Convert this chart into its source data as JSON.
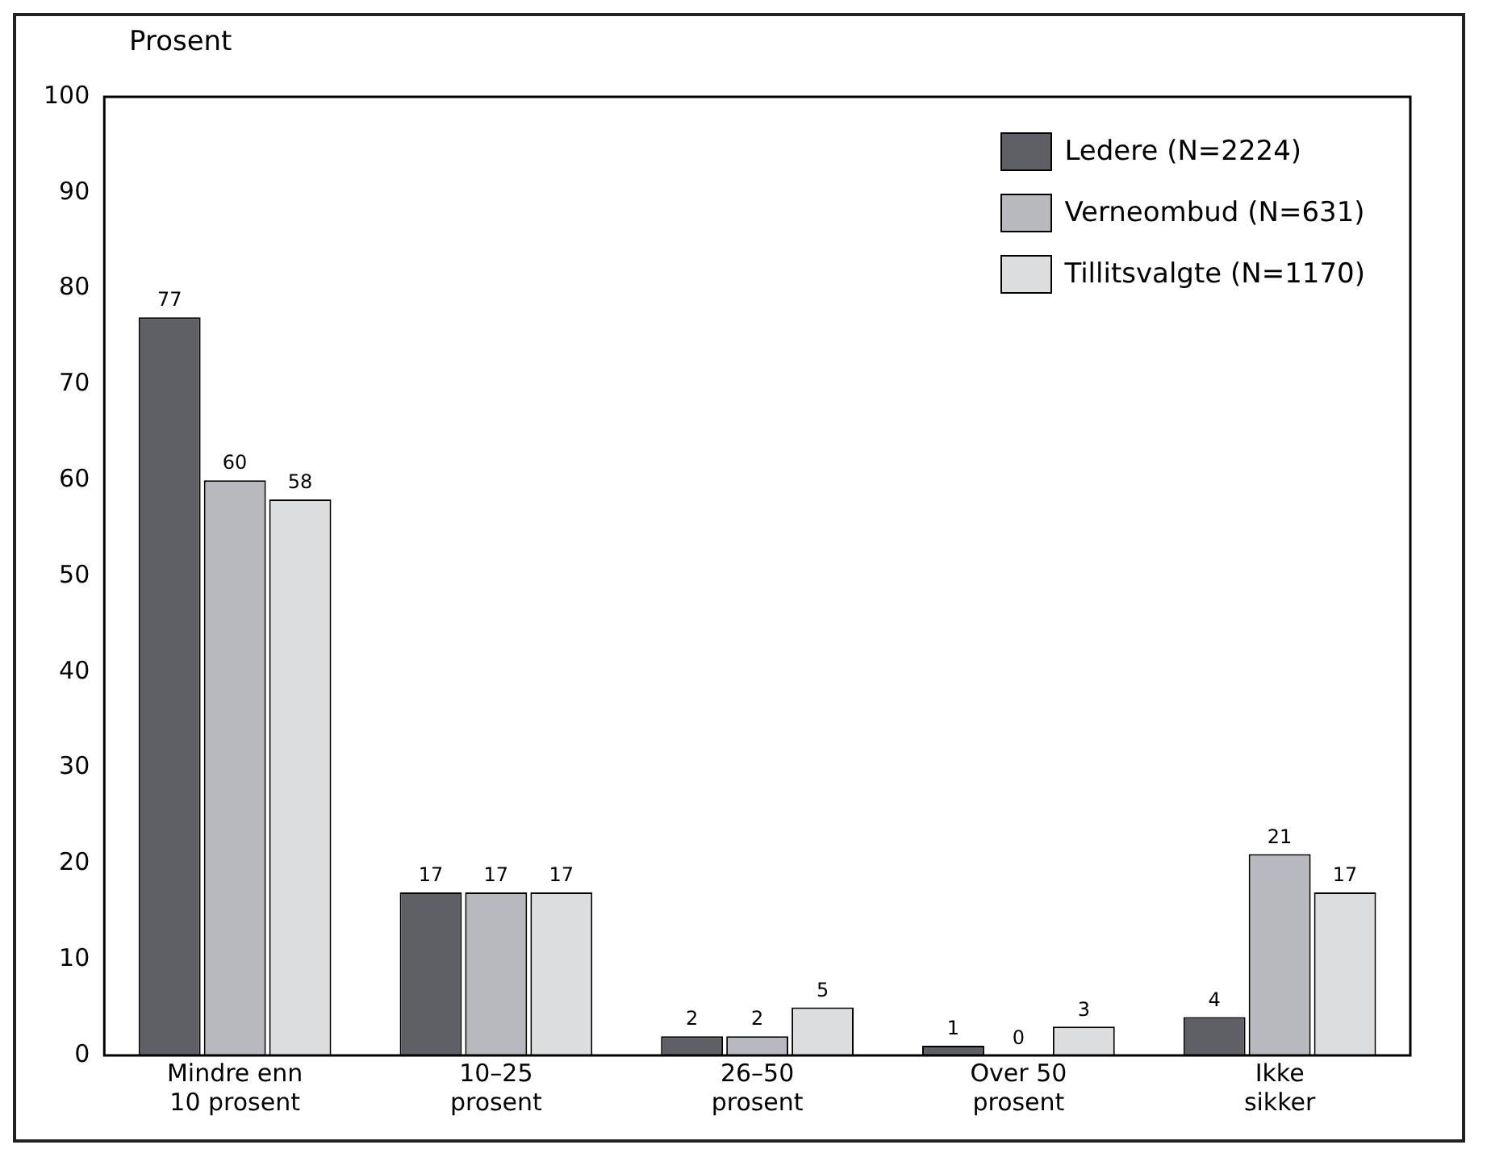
{
  "chart_data": {
    "type": "bar",
    "ylabel": "Prosent",
    "categories": [
      "Mindre enn 10 prosent",
      "10–25 prosent",
      "26–50 prosent",
      "Over 50 prosent",
      "Ikke sikker"
    ],
    "series": [
      {
        "name": "Ledere (N=2224)",
        "color": "#5f6066",
        "values": [
          77,
          17,
          2,
          1,
          4
        ]
      },
      {
        "name": "Verneombud (N=631)",
        "color": "#b8b9be",
        "values": [
          60,
          17,
          2,
          0,
          21
        ]
      },
      {
        "name": "Tillitsvalgte (N=1170)",
        "color": "#dcdddf",
        "values": [
          58,
          17,
          5,
          3,
          17
        ]
      }
    ],
    "ylim": [
      0,
      100
    ],
    "yticks": [
      0,
      10,
      20,
      30,
      40,
      50,
      60,
      70,
      80,
      90,
      100
    ],
    "grid": false,
    "legend": "top right",
    "data_labels": true
  }
}
